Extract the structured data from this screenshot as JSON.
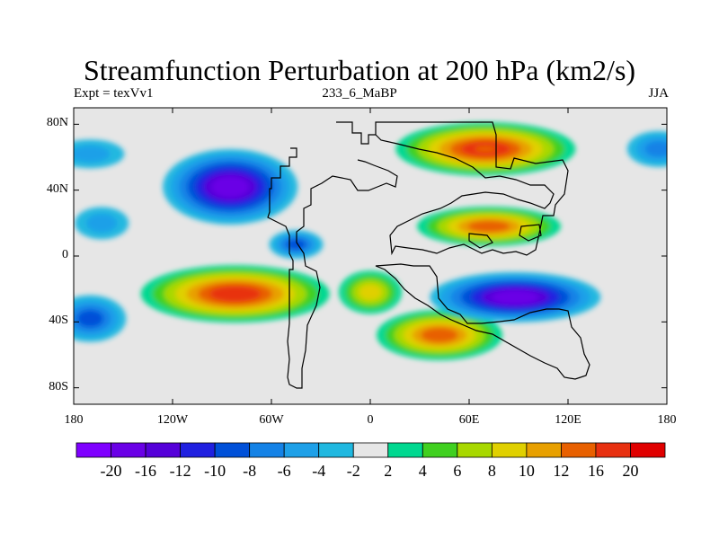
{
  "chart_data": {
    "type": "heatmap",
    "title": "Streamfunction Perturbation at 200 hPa (km2/s)",
    "subtitle_left": "Expt = texVv1",
    "subtitle_center": "233_6_MaBP",
    "subtitle_right": "JJA",
    "xlim": [
      -180,
      180
    ],
    "ylim": [
      -90,
      90
    ],
    "x_ticks": [
      {
        "value": -180,
        "label": "180"
      },
      {
        "value": -120,
        "label": "120W"
      },
      {
        "value": -60,
        "label": "60W"
      },
      {
        "value": 0,
        "label": "0"
      },
      {
        "value": 60,
        "label": "60E"
      },
      {
        "value": 120,
        "label": "120E"
      },
      {
        "value": 180,
        "label": "180"
      }
    ],
    "y_ticks": [
      {
        "value": 80,
        "label": "80N"
      },
      {
        "value": 40,
        "label": "40N"
      },
      {
        "value": 0,
        "label": "0"
      },
      {
        "value": -40,
        "label": "40S"
      },
      {
        "value": -80,
        "label": "80S"
      }
    ],
    "colorbar": {
      "colors": [
        "#7f00ff",
        "#6a00e6",
        "#5500d9",
        "#2020e0",
        "#0050d8",
        "#1482e6",
        "#1ea0e8",
        "#20b8e0",
        "#e6e6e6",
        "#00d890",
        "#40d020",
        "#a8d800",
        "#e0d000",
        "#e8a000",
        "#e86000",
        "#e83010",
        "#e00000"
      ],
      "labels": [
        "-20",
        "-16",
        "-12",
        "-10",
        "-8",
        "-6",
        "-4",
        "-2",
        "2",
        "4",
        "6",
        "8",
        "10",
        "12",
        "16",
        "20"
      ]
    },
    "features": [
      {
        "name": "north-pacific-low",
        "lon": -170,
        "lat": 62,
        "value": -5
      },
      {
        "name": "north-america-trough",
        "lon": -85,
        "lat": 42,
        "value": -17
      },
      {
        "name": "gulf-mexico-trough",
        "lon": -45,
        "lat": 7,
        "value": -9
      },
      {
        "name": "atlantic-low",
        "lon": -163,
        "lat": 20,
        "value": -4
      },
      {
        "name": "atlantic-southern-low",
        "lon": -170,
        "lat": -38,
        "value": -9
      },
      {
        "name": "south-pacific-high",
        "lon": -82,
        "lat": -23,
        "value": 19
      },
      {
        "name": "south-atlantic-high",
        "lon": 42,
        "lat": -48,
        "value": 14
      },
      {
        "name": "south-africa-high",
        "lon": 0,
        "lat": -22,
        "value": 9
      },
      {
        "name": "eurasia-high",
        "lon": 70,
        "lat": 65,
        "value": 16
      },
      {
        "name": "tibetan-high",
        "lon": 72,
        "lat": 18,
        "value": 14
      },
      {
        "name": "indian-ocean-low",
        "lon": 88,
        "lat": -25,
        "value": -18
      },
      {
        "name": "north-pacific-east-low",
        "lon": 175,
        "lat": 65,
        "value": -6
      }
    ]
  }
}
